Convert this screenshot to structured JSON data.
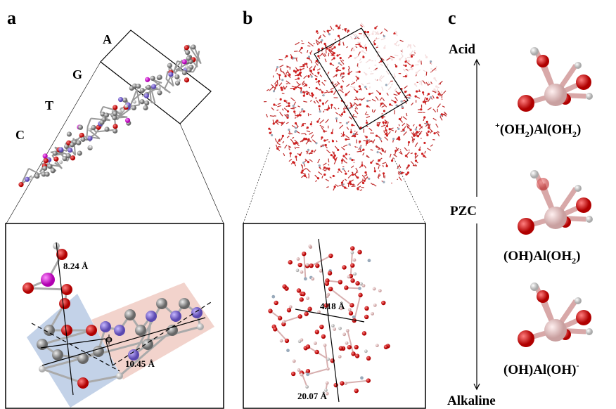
{
  "panels": {
    "a": {
      "letter": "a",
      "bases": [
        "A",
        "G",
        "T",
        "C"
      ],
      "distances": [
        "8.24 Å",
        "10.45 Å"
      ],
      "angle": "ϕ"
    },
    "b": {
      "letter": "b",
      "distances": [
        "4.18 Å",
        "20.07 Å"
      ]
    },
    "c": {
      "letter": "c",
      "scale": {
        "top": "Acid",
        "middle": "PZC",
        "bottom": "Alkaline"
      },
      "species": [
        {
          "parts": [
            "+",
            "(OH",
            "2",
            ")Al(OH",
            "2",
            ")"
          ]
        },
        {
          "parts": [
            "(OH)Al(OH",
            "2",
            ")"
          ]
        },
        {
          "parts": [
            "(OH)Al(OH)",
            "-"
          ]
        }
      ]
    }
  }
}
